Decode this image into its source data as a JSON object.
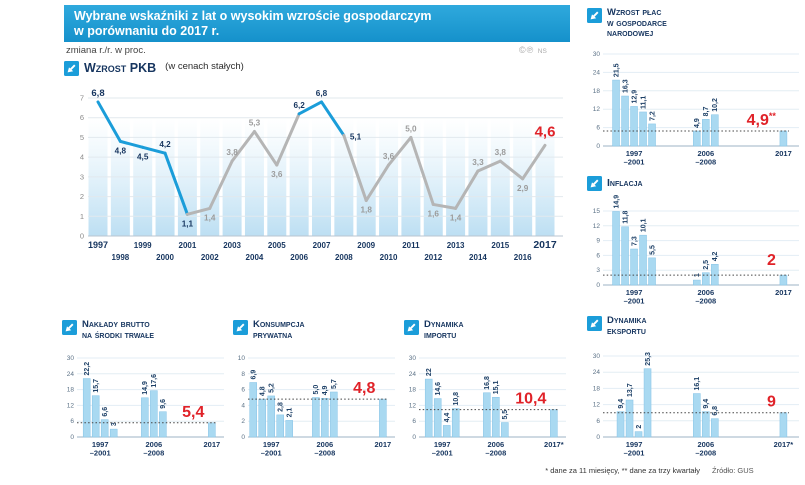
{
  "header": {
    "title_line1": "Wybrane wskaźniki z lat o wysokim wzroście gospodarczym",
    "title_line2": "w porównaniu do 2017 r.",
    "subtitle": "zmiana r./r. w proc.",
    "rights": "©℗",
    "rights_initials": "NS"
  },
  "footer": {
    "notes": "* dane za 11 miesięcy, ** dane za trzy kwartały",
    "source": "Źródło: GUS"
  },
  "colors": {
    "accent_blue": "#1b9dd9",
    "navy": "#16355f",
    "red": "#e02228",
    "gray_line": "#b5b5b5",
    "bar_fill": "#a9d9f1",
    "bar_edge": "#85c3e6"
  },
  "chart_data": [
    {
      "id": "pkb",
      "type": "line",
      "title": "Wzrost PKB",
      "subtitle": "(w cenach stałych)",
      "ylim": [
        0,
        7
      ],
      "y_ticks": [
        0,
        1,
        2,
        3,
        4,
        5,
        6,
        7
      ],
      "grid": true,
      "legend": false,
      "x": [
        1997,
        1998,
        1999,
        2000,
        2001,
        2002,
        2003,
        2004,
        2005,
        2006,
        2007,
        2008,
        2009,
        2010,
        2011,
        2012,
        2013,
        2014,
        2015,
        2016,
        2017
      ],
      "values": [
        6.8,
        4.8,
        4.5,
        4.2,
        1.1,
        1.4,
        3.8,
        5.3,
        3.6,
        6.2,
        6.8,
        5.1,
        1.8,
        3.6,
        5.0,
        1.6,
        1.4,
        3.3,
        3.8,
        2.9,
        4.6
      ],
      "point_labels": [
        "6,8",
        "4,8",
        "4,5",
        "4,2",
        "1,1",
        "1,4",
        "3,8",
        "5,3",
        "3,6",
        "6,2",
        "6,8",
        "5,1",
        "1,8",
        "3,6",
        "5,0",
        "1,6",
        "1,4",
        "3,3",
        "3,8",
        "2,9",
        "4,6"
      ],
      "label_pos": [
        "above",
        "below",
        "below",
        "above",
        "below",
        "below",
        "above",
        "above",
        "below",
        "above",
        "above",
        "right",
        "below",
        "above",
        "above",
        "below",
        "below",
        "above",
        "above",
        "below",
        "above"
      ],
      "highlight_ranges": [
        [
          1997,
          2001
        ],
        [
          2006,
          2008
        ]
      ],
      "final_year": 2017
    },
    {
      "id": "wage",
      "type": "bar",
      "title": "Wzrost płac w gospodarce narodowej",
      "title_lines": [
        "Wzrost płac",
        "w gospodarce",
        "narodowej"
      ],
      "ylim": [
        0,
        30
      ],
      "y_ticks": [
        0,
        6,
        12,
        18,
        24,
        30
      ],
      "groups": [
        {
          "label_lines": [
            "1997",
            "–2001"
          ],
          "bars": [
            {
              "v": 21.5,
              "label": "21,5"
            },
            {
              "v": 16.3,
              "label": "16,3"
            },
            {
              "v": 12.9,
              "label": "12,9"
            },
            {
              "v": 11.1,
              "label": "11,1"
            },
            {
              "v": 7.2,
              "label": "7,2"
            }
          ]
        },
        {
          "label_lines": [
            "2006",
            "–2008"
          ],
          "bars": [
            {
              "v": 4.9,
              "label": "4,9"
            },
            {
              "v": 8.7,
              "label": "8,7"
            },
            {
              "v": 10.2,
              "label": "10,2"
            }
          ]
        },
        {
          "label_lines": [
            "2017"
          ],
          "bars": [
            {
              "v": 4.9,
              "label": ""
            }
          ]
        }
      ],
      "ref_value": 4.9,
      "red_label": "4,9**"
    },
    {
      "id": "inflation",
      "type": "bar",
      "title": "Inflacja",
      "ylim": [
        0,
        15
      ],
      "y_ticks": [
        0,
        3,
        6,
        9,
        12,
        15
      ],
      "groups": [
        {
          "label_lines": [
            "1997",
            "–2001"
          ],
          "bars": [
            {
              "v": 14.9,
              "label": "14,9"
            },
            {
              "v": 11.8,
              "label": "11,8"
            },
            {
              "v": 7.3,
              "label": "7,3"
            },
            {
              "v": 10.1,
              "label": "10,1"
            },
            {
              "v": 5.5,
              "label": "5,5"
            }
          ]
        },
        {
          "label_lines": [
            "2006",
            "–2008"
          ],
          "bars": [
            {
              "v": 1.0,
              "label": "1"
            },
            {
              "v": 2.5,
              "label": "2,5"
            },
            {
              "v": 4.2,
              "label": "4,2"
            }
          ]
        },
        {
          "label_lines": [
            "2017"
          ],
          "bars": [
            {
              "v": 2.0,
              "label": ""
            }
          ]
        }
      ],
      "ref_value": 2.0,
      "red_label": "2"
    },
    {
      "id": "investment",
      "type": "bar",
      "title": "Nakłady brutto na środki trwałe",
      "title_lines": [
        "Nakłady brutto",
        "na środki trwałe"
      ],
      "ylim": [
        0,
        30
      ],
      "y_ticks": [
        0,
        6,
        12,
        18,
        24,
        30
      ],
      "groups": [
        {
          "label_lines": [
            "1997",
            "–2001"
          ],
          "bars": [
            {
              "v": 22.2,
              "label": "22,2"
            },
            {
              "v": 15.7,
              "label": "15,7"
            },
            {
              "v": 6.6,
              "label": "6,6"
            },
            {
              "v": 3.0,
              "label": "3"
            }
          ]
        },
        {
          "label_lines": [
            "2006",
            "–2008"
          ],
          "bars": [
            {
              "v": 14.9,
              "label": "14,9"
            },
            {
              "v": 17.6,
              "label": "17,6"
            },
            {
              "v": 9.6,
              "label": "9,6"
            }
          ]
        },
        {
          "label_lines": [
            "2017"
          ],
          "bars": [
            {
              "v": 5.4,
              "label": ""
            }
          ]
        }
      ],
      "ref_value": 5.4,
      "red_label": "5,4"
    },
    {
      "id": "consumption",
      "type": "bar",
      "title": "Konsumpcja prywatna",
      "title_lines": [
        "Konsumpcja",
        "prywatna"
      ],
      "ylim": [
        0,
        10
      ],
      "y_ticks": [
        0,
        2,
        4,
        6,
        8,
        10
      ],
      "groups": [
        {
          "label_lines": [
            "1997",
            "–2001"
          ],
          "bars": [
            {
              "v": 6.9,
              "label": "6,9"
            },
            {
              "v": 4.8,
              "label": "4,8"
            },
            {
              "v": 5.2,
              "label": "5,2"
            },
            {
              "v": 2.8,
              "label": "2,8"
            },
            {
              "v": 2.1,
              "label": "2,1"
            }
          ]
        },
        {
          "label_lines": [
            "2006",
            "–2008"
          ],
          "bars": [
            {
              "v": 5.0,
              "label": "5,0"
            },
            {
              "v": 4.9,
              "label": "4,9"
            },
            {
              "v": 5.7,
              "label": "5,7"
            }
          ]
        },
        {
          "label_lines": [
            "2017"
          ],
          "bars": [
            {
              "v": 4.8,
              "label": ""
            }
          ]
        }
      ],
      "ref_value": 4.8,
      "red_label": "4,8"
    },
    {
      "id": "imports",
      "type": "bar",
      "title": "Dynamika importu",
      "title_lines": [
        "Dynamika",
        "importu"
      ],
      "ylim": [
        0,
        30
      ],
      "y_ticks": [
        0,
        6,
        12,
        18,
        24,
        30
      ],
      "groups": [
        {
          "label_lines": [
            "1997",
            "–2001"
          ],
          "bars": [
            {
              "v": 22.0,
              "label": "22"
            },
            {
              "v": 14.6,
              "label": "14,6"
            },
            {
              "v": 4.4,
              "label": "4,4"
            },
            {
              "v": 10.8,
              "label": "10,8"
            }
          ]
        },
        {
          "label_lines": [
            "2006",
            "–2008"
          ],
          "bars": [
            {
              "v": 16.8,
              "label": "16,8"
            },
            {
              "v": 15.1,
              "label": "15,1"
            },
            {
              "v": 5.5,
              "label": "5,5"
            }
          ]
        },
        {
          "label_lines": [
            "2017*"
          ],
          "bars": [
            {
              "v": 10.4,
              "label": ""
            }
          ]
        }
      ],
      "ref_value": 10.4,
      "red_label": "10,4"
    },
    {
      "id": "exports",
      "type": "bar",
      "title": "Dynamika eksportu",
      "title_lines": [
        "Dynamika",
        "eksportu"
      ],
      "ylim": [
        0,
        30
      ],
      "y_ticks": [
        0,
        6,
        12,
        18,
        24,
        30
      ],
      "groups": [
        {
          "label_lines": [
            "1997",
            "–2001"
          ],
          "bars": [
            {
              "v": 9.4,
              "label": "9,4"
            },
            {
              "v": 13.7,
              "label": "13,7"
            },
            {
              "v": 2.0,
              "label": "2"
            },
            {
              "v": 25.3,
              "label": "25,3"
            }
          ]
        },
        {
          "label_lines": [
            "2006",
            "–2008"
          ],
          "bars": [
            {
              "v": 16.1,
              "label": "16,1"
            },
            {
              "v": 9.4,
              "label": "9,4"
            },
            {
              "v": 6.8,
              "label": "6,8"
            }
          ]
        },
        {
          "label_lines": [
            "2017*"
          ],
          "bars": [
            {
              "v": 9.0,
              "label": ""
            }
          ]
        }
      ],
      "ref_value": 9.0,
      "red_label": "9"
    }
  ]
}
